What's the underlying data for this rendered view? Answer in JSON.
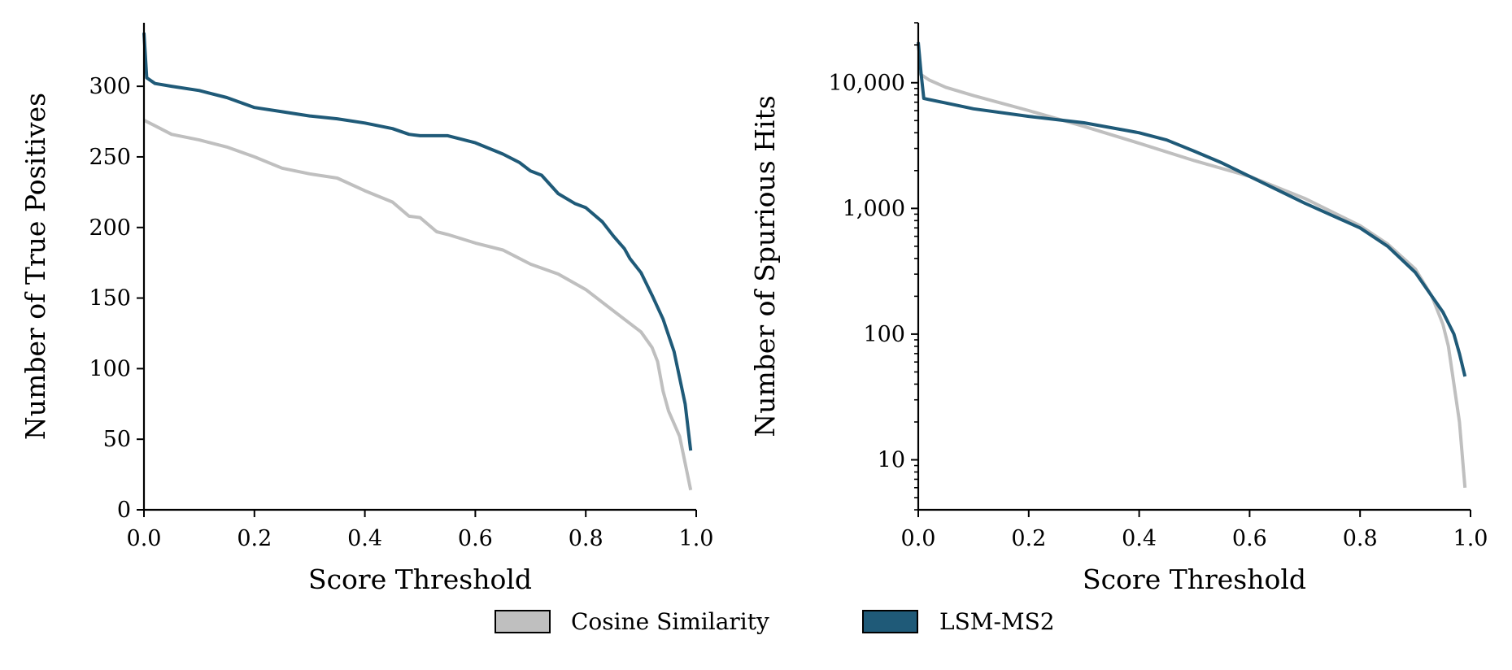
{
  "figure": {
    "legend": {
      "placement": "bottom-center",
      "entries": [
        {
          "label": "Cosine Similarity",
          "color": "#bfbfbf"
        },
        {
          "label": "LSM-MS2",
          "color": "#1f5a78"
        }
      ]
    }
  },
  "chart_data": [
    {
      "type": "line",
      "title": "",
      "xlabel": "Score Threshold",
      "ylabel": "Number of True Positives",
      "xlim": [
        0,
        1
      ],
      "ylim": [
        0,
        345
      ],
      "xticks": [
        0.0,
        0.2,
        0.4,
        0.6,
        0.8,
        1.0
      ],
      "xtick_labels": [
        "0.0",
        "0.2",
        "0.4",
        "0.6",
        "0.8",
        "1.0"
      ],
      "yticks": [
        0,
        50,
        100,
        150,
        200,
        250,
        300
      ],
      "ytick_labels": [
        "0",
        "50",
        "100",
        "150",
        "200",
        "250",
        "300"
      ],
      "yscale": "linear",
      "grid": false,
      "series": [
        {
          "name": "Cosine Similarity",
          "color": "#bfbfbf",
          "x": [
            0.0,
            0.02,
            0.05,
            0.1,
            0.15,
            0.2,
            0.25,
            0.3,
            0.35,
            0.4,
            0.45,
            0.48,
            0.5,
            0.53,
            0.55,
            0.6,
            0.65,
            0.7,
            0.75,
            0.8,
            0.85,
            0.88,
            0.9,
            0.92,
            0.93,
            0.94,
            0.95,
            0.97,
            0.99
          ],
          "values": [
            276,
            272,
            266,
            262,
            257,
            250,
            242,
            238,
            235,
            226,
            218,
            208,
            207,
            197,
            195,
            189,
            184,
            174,
            167,
            156,
            141,
            132,
            126,
            115,
            105,
            84,
            70,
            52,
            14
          ]
        },
        {
          "name": "LSM-MS2",
          "color": "#1f5a78",
          "x": [
            0.0,
            0.005,
            0.02,
            0.05,
            0.1,
            0.15,
            0.2,
            0.25,
            0.3,
            0.35,
            0.4,
            0.45,
            0.48,
            0.5,
            0.55,
            0.6,
            0.65,
            0.68,
            0.7,
            0.72,
            0.75,
            0.78,
            0.8,
            0.83,
            0.85,
            0.87,
            0.88,
            0.9,
            0.92,
            0.94,
            0.96,
            0.98,
            0.99
          ],
          "values": [
            338,
            306,
            302,
            300,
            297,
            292,
            285,
            282,
            279,
            277,
            274,
            270,
            266,
            265,
            265,
            260,
            252,
            246,
            240,
            237,
            224,
            217,
            214,
            204,
            194,
            185,
            178,
            168,
            152,
            135,
            112,
            75,
            42
          ]
        }
      ]
    },
    {
      "type": "line",
      "title": "",
      "xlabel": "Score Threshold",
      "ylabel": "Number of Spurious Hits",
      "xlim": [
        0,
        1
      ],
      "ylim": [
        4,
        30000
      ],
      "xticks": [
        0.0,
        0.2,
        0.4,
        0.6,
        0.8,
        1.0
      ],
      "xtick_labels": [
        "0.0",
        "0.2",
        "0.4",
        "0.6",
        "0.8",
        "1.0"
      ],
      "yticks": [
        10,
        100,
        1000,
        10000
      ],
      "ytick_labels": [
        "10",
        "100",
        "1,000",
        "10,000"
      ],
      "yscale": "log",
      "grid": false,
      "series": [
        {
          "name": "Cosine Similarity",
          "color": "#bfbfbf",
          "x": [
            0.0,
            0.02,
            0.05,
            0.1,
            0.2,
            0.3,
            0.4,
            0.5,
            0.6,
            0.7,
            0.8,
            0.85,
            0.9,
            0.93,
            0.95,
            0.96,
            0.97,
            0.98,
            0.99
          ],
          "values": [
            12000,
            10500,
            9200,
            7900,
            6000,
            4500,
            3300,
            2400,
            1800,
            1200,
            730,
            520,
            330,
            200,
            120,
            80,
            40,
            20,
            6
          ]
        },
        {
          "name": "LSM-MS2",
          "color": "#1f5a78",
          "x": [
            0.0,
            0.005,
            0.01,
            0.05,
            0.1,
            0.2,
            0.3,
            0.4,
            0.45,
            0.5,
            0.55,
            0.6,
            0.7,
            0.8,
            0.85,
            0.9,
            0.93,
            0.95,
            0.97,
            0.98,
            0.99
          ],
          "values": [
            21000,
            12000,
            7500,
            6900,
            6200,
            5400,
            4800,
            4000,
            3500,
            2850,
            2300,
            1800,
            1100,
            700,
            500,
            310,
            200,
            150,
            100,
            70,
            46
          ]
        }
      ]
    }
  ]
}
